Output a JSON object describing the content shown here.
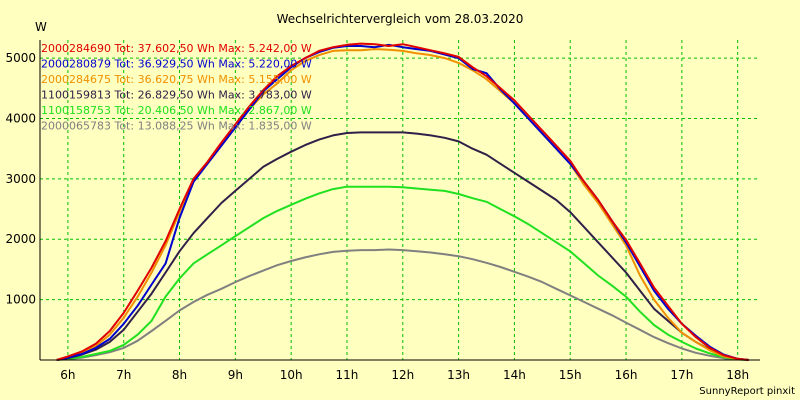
{
  "chart_data": {
    "type": "line",
    "title": "Wechselrichtervergleich vom 28.03.2020",
    "ylabel": "W",
    "xlabel": "",
    "x_ticks": [
      "6h",
      "7h",
      "8h",
      "9h",
      "10h",
      "11h",
      "12h",
      "13h",
      "14h",
      "15h",
      "16h",
      "17h",
      "18h"
    ],
    "xlim": [
      5.5,
      18.4
    ],
    "ylim": [
      0,
      5300
    ],
    "y_ticks": [
      1000,
      2000,
      3000,
      4000,
      5000
    ],
    "grid": true,
    "legend_position": "top-left",
    "x": [
      5.8,
      6.0,
      6.25,
      6.5,
      6.75,
      7.0,
      7.25,
      7.5,
      7.75,
      8.0,
      8.25,
      8.5,
      8.75,
      9.0,
      9.25,
      9.5,
      9.75,
      10.0,
      10.25,
      10.5,
      10.75,
      11.0,
      11.25,
      11.5,
      11.75,
      12.0,
      12.25,
      12.5,
      12.75,
      13.0,
      13.25,
      13.5,
      13.75,
      14.0,
      14.25,
      14.5,
      14.75,
      15.0,
      15.25,
      15.5,
      15.75,
      16.0,
      16.25,
      16.5,
      16.75,
      17.0,
      17.25,
      17.5,
      17.75,
      18.0,
      18.2
    ],
    "series": [
      {
        "name": "2000284690",
        "label": "2000284690 Tot: 37.602,50 Wh Max: 5.242,00 W",
        "color": "#e00000",
        "values": [
          0,
          60,
          140,
          270,
          480,
          780,
          1150,
          1530,
          1970,
          2500,
          3000,
          3280,
          3600,
          3900,
          4200,
          4470,
          4700,
          4870,
          5000,
          5120,
          5180,
          5220,
          5240,
          5230,
          5200,
          5230,
          5180,
          5130,
          5080,
          5020,
          4850,
          4700,
          4500,
          4300,
          4050,
          3800,
          3550,
          3300,
          2950,
          2650,
          2300,
          1990,
          1600,
          1200,
          900,
          600,
          380,
          200,
          80,
          20,
          0
        ]
      },
      {
        "name": "2000280879",
        "label": "2000280879 Tot: 36.929,50 Wh Max: 5.220,00 W",
        "color": "#0000d0",
        "values": [
          0,
          40,
          100,
          200,
          350,
          600,
          900,
          1250,
          1600,
          2350,
          2950,
          3250,
          3550,
          3850,
          4150,
          4450,
          4650,
          4850,
          5000,
          5100,
          5170,
          5200,
          5200,
          5180,
          5220,
          5180,
          5150,
          5120,
          5060,
          5000,
          4820,
          4750,
          4480,
          4250,
          4000,
          3750,
          3500,
          3250,
          2950,
          2650,
          2300,
          1950,
          1550,
          1150,
          850,
          600,
          400,
          220,
          90,
          20,
          0
        ]
      },
      {
        "name": "2000284675",
        "label": "2000284675 Tot: 36.620,75 Wh Max: 5.155,00 W",
        "color": "#f09000",
        "values": [
          0,
          50,
          120,
          230,
          420,
          700,
          1050,
          1450,
          1900,
          2450,
          2980,
          3250,
          3550,
          3850,
          4150,
          4400,
          4580,
          4800,
          4950,
          5050,
          5120,
          5130,
          5130,
          5150,
          5140,
          5120,
          5080,
          5050,
          5000,
          4920,
          4800,
          4650,
          4450,
          4250,
          4000,
          3750,
          3500,
          3250,
          2900,
          2600,
          2250,
          1900,
          1400,
          1000,
          700,
          450,
          300,
          160,
          60,
          15,
          0
        ]
      },
      {
        "name": "1100159813",
        "label": "1100159813 Tot: 26.829,50 Wh Max: 3.783,00 W",
        "color": "#302048",
        "values": [
          0,
          30,
          90,
          170,
          300,
          500,
          800,
          1100,
          1450,
          1800,
          2100,
          2350,
          2600,
          2800,
          3000,
          3200,
          3330,
          3450,
          3560,
          3650,
          3720,
          3760,
          3770,
          3770,
          3770,
          3770,
          3750,
          3720,
          3680,
          3620,
          3500,
          3400,
          3250,
          3100,
          2950,
          2800,
          2650,
          2450,
          2200,
          1950,
          1700,
          1450,
          1150,
          850,
          650,
          450,
          300,
          170,
          70,
          15,
          0
        ]
      },
      {
        "name": "1100158753",
        "label": "1100158753 Tot: 20.406,50 Wh Max: 2.867,00 W",
        "color": "#20e020",
        "values": [
          0,
          20,
          50,
          100,
          150,
          250,
          420,
          650,
          1050,
          1350,
          1600,
          1750,
          1900,
          2050,
          2200,
          2350,
          2470,
          2570,
          2670,
          2760,
          2830,
          2870,
          2870,
          2870,
          2870,
          2860,
          2840,
          2820,
          2800,
          2750,
          2680,
          2620,
          2500,
          2380,
          2250,
          2100,
          1950,
          1800,
          1600,
          1400,
          1230,
          1050,
          800,
          580,
          420,
          300,
          190,
          110,
          45,
          10,
          0
        ]
      },
      {
        "name": "2000065783",
        "label": "2000065783 Tot: 13.088,25 Wh Max: 1.835,00 W",
        "color": "#808080",
        "values": [
          0,
          15,
          40,
          80,
          130,
          200,
          320,
          480,
          650,
          820,
          960,
          1080,
          1180,
          1290,
          1390,
          1480,
          1570,
          1640,
          1700,
          1750,
          1790,
          1810,
          1820,
          1820,
          1830,
          1820,
          1800,
          1780,
          1750,
          1720,
          1670,
          1610,
          1540,
          1460,
          1380,
          1290,
          1180,
          1070,
          960,
          850,
          740,
          620,
          500,
          380,
          280,
          190,
          120,
          70,
          30,
          8,
          0
        ]
      }
    ],
    "footer": "SunnyReport pinxit"
  },
  "colors": {
    "background": "#ffffc0",
    "grid": "#00c000",
    "axis": "#000000"
  }
}
